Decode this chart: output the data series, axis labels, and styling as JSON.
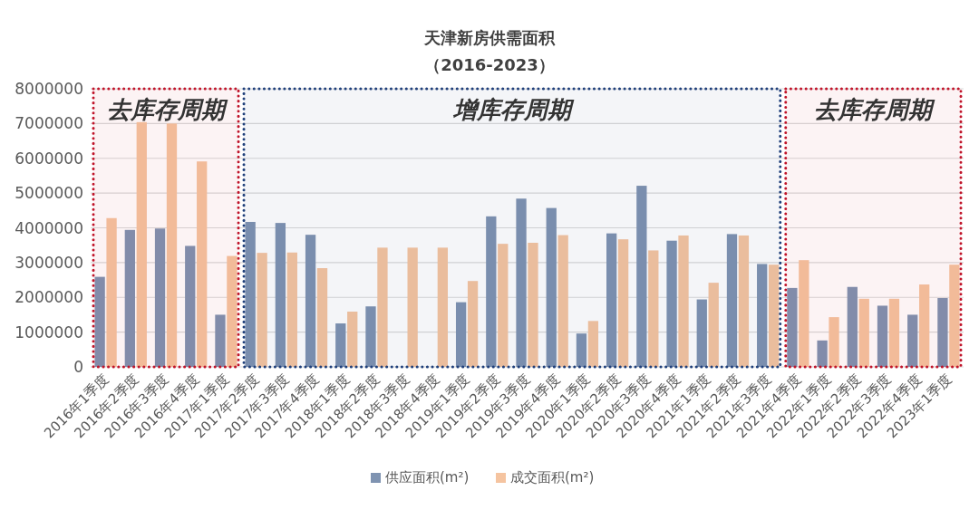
{
  "chart_data": {
    "type": "bar",
    "title": "天津新房供需面积",
    "subtitle": "（2016-2023）",
    "categories": [
      "2016年1季度",
      "2016年2季度",
      "2016年3季度",
      "2016年4季度",
      "2017年1季度",
      "2017年2季度",
      "2017年3季度",
      "2017年4季度",
      "2018年1季度",
      "2018年2季度",
      "2018年3季度",
      "2018年4季度",
      "2019年1季度",
      "2019年2季度",
      "2019年3季度",
      "2019年4季度",
      "2020年1季度",
      "2020年2季度",
      "2020年3季度",
      "2020年4季度",
      "2021年1季度",
      "2021年2季度",
      "2021年3季度",
      "2021年4季度",
      "2022年1季度",
      "2022年2季度",
      "2022年3季度",
      "2022年4季度",
      "2023年1季度"
    ],
    "series": [
      {
        "name": "供应面积(m²)",
        "color": "#7f93b1",
        "values": [
          2590000,
          3940000,
          3980000,
          3480000,
          1500000,
          4170000,
          4140000,
          3800000,
          1250000,
          1740000,
          null,
          null,
          1860000,
          4330000,
          4840000,
          4570000,
          960000,
          3840000,
          5210000,
          3630000,
          1940000,
          3820000,
          2960000,
          2270000,
          760000,
          2300000,
          1760000,
          1500000,
          1980000
        ]
      },
      {
        "name": "成交面积(m²)",
        "color": "#f5c4a0",
        "values": [
          4280000,
          7040000,
          7000000,
          5910000,
          3190000,
          3280000,
          3290000,
          2840000,
          1590000,
          3430000,
          3430000,
          3430000,
          2470000,
          3540000,
          3570000,
          3790000,
          1320000,
          3670000,
          3350000,
          3780000,
          2420000,
          3780000,
          2940000,
          3070000,
          1430000,
          1960000,
          1960000,
          2370000,
          2940000
        ]
      }
    ],
    "ylim": [
      0,
      8000000
    ],
    "yticks": [
      0,
      1000000,
      2000000,
      3000000,
      4000000,
      5000000,
      6000000,
      7000000,
      8000000
    ],
    "grid": "y",
    "legend": "bottom",
    "bands": [
      {
        "axis": "x",
        "from": "2016年1季度",
        "to": "2017年1季度",
        "label": "去库存周期",
        "color": "#c0142a"
      },
      {
        "axis": "x",
        "from": "2017年2季度",
        "to": "2021年3季度",
        "label": "增库存周期",
        "color": "#1f3f7a"
      },
      {
        "axis": "x",
        "from": "2021年4季度",
        "to": "2023年1季度",
        "label": "去库存周期",
        "color": "#c0142a"
      }
    ]
  }
}
